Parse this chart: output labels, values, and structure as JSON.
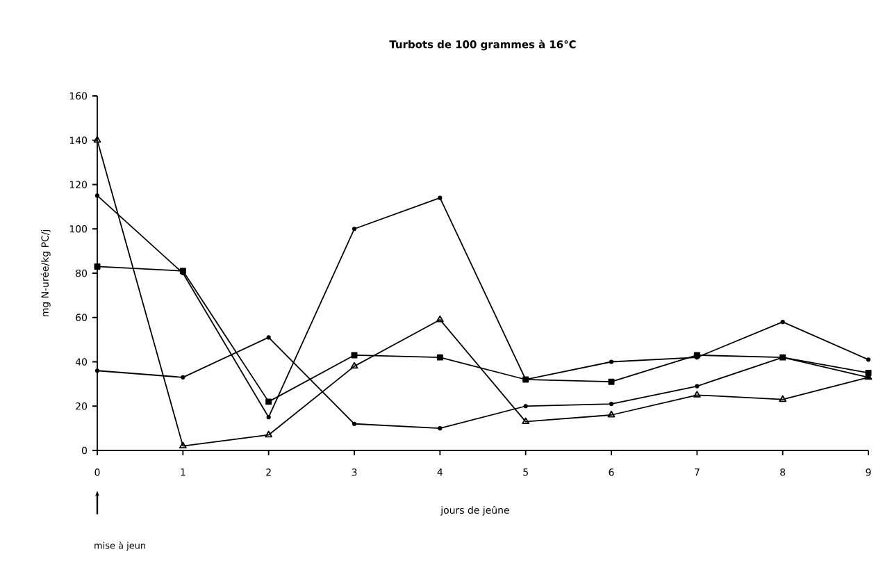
{
  "chart_data": {
    "type": "line",
    "title": "Turbots de 100 grammes à 16°C",
    "xlabel": "jours de jeûne",
    "ylabel": "mg N-urée/kg PC/j",
    "x": [
      0,
      1,
      2,
      3,
      4,
      5,
      6,
      7,
      8,
      9
    ],
    "series": [
      {
        "color": "#000000",
        "marker": "triangle",
        "values": [
          140,
          2,
          7,
          38,
          59,
          13,
          16,
          25,
          23,
          33
        ]
      },
      {
        "color": "#000000",
        "marker": "circle",
        "values": [
          115,
          80,
          15,
          100,
          114,
          32,
          40,
          42,
          58,
          41
        ]
      },
      {
        "color": "#000000",
        "marker": "square",
        "values": [
          83,
          81,
          22,
          43,
          42,
          32,
          31,
          43,
          42,
          35
        ]
      },
      {
        "color": "#000000",
        "marker": "circle",
        "values": [
          36,
          33,
          51,
          12,
          10,
          20,
          21,
          29,
          42,
          33
        ]
      }
    ],
    "xlim": [
      0,
      9
    ],
    "ylim": [
      0,
      160
    ],
    "xticks": [
      0,
      1,
      2,
      3,
      4,
      5,
      6,
      7,
      8,
      9
    ],
    "yticks": [
      0,
      20,
      40,
      60,
      80,
      100,
      120,
      140,
      160
    ],
    "line_style": "solid",
    "annotations": [
      "mise à jeun"
    ]
  }
}
